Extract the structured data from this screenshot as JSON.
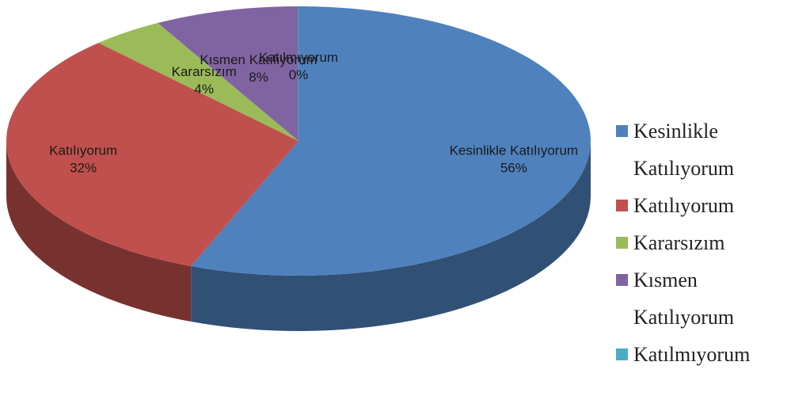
{
  "chart_data": {
    "type": "pie",
    "categories": [
      "Kesinlikle Katılıyorum",
      "Katılıyorum",
      "Kararsızım",
      "Kısmen Katılıyorum",
      "Katılmıyorum"
    ],
    "values": [
      56,
      32,
      4,
      8,
      0
    ],
    "value_labels": [
      "56%",
      "32%",
      "4%",
      "8%",
      "0%"
    ],
    "colors": [
      "#4f81bd",
      "#c0504d",
      "#9bbb59",
      "#8064a2",
      "#4bacc6"
    ],
    "legend": "right"
  }
}
